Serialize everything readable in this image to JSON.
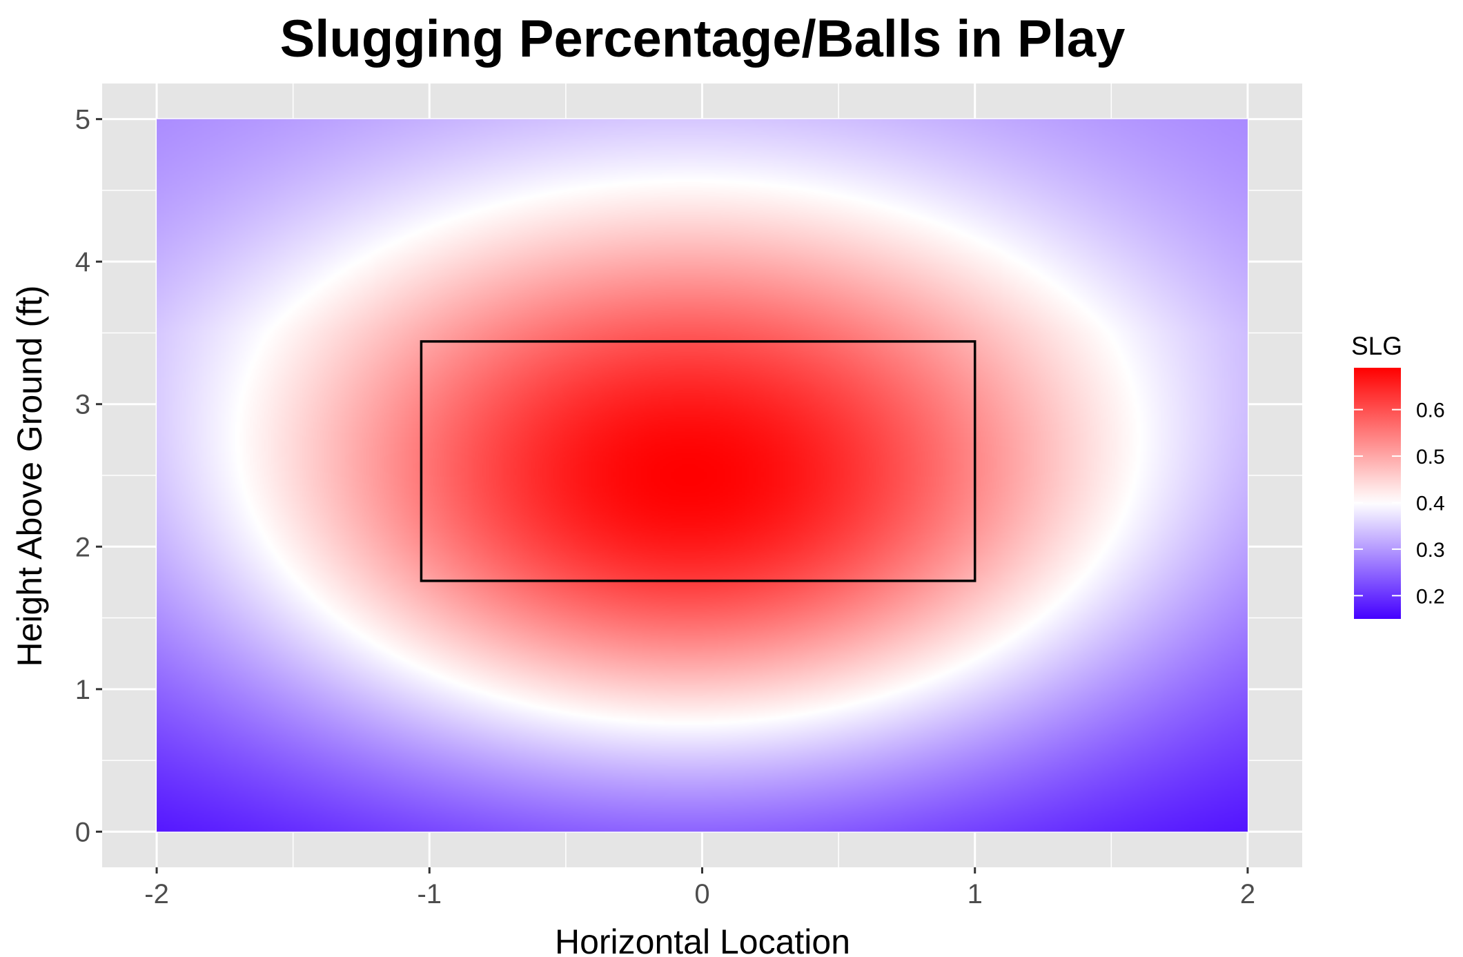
{
  "chart_data": {
    "type": "heatmap",
    "title": "Slugging Percentage/Balls in Play",
    "xlabel": "Horizontal Location",
    "ylabel": "Height Above Ground (ft)",
    "xlim": [
      -2.2,
      2.2
    ],
    "ylim": [
      -0.25,
      5.25
    ],
    "x_ticks": [
      -2,
      -1,
      0,
      1,
      2
    ],
    "x_tick_labels": [
      "-2",
      "-1",
      "0",
      "1",
      "2"
    ],
    "y_ticks": [
      0,
      1,
      2,
      3,
      4,
      5
    ],
    "y_tick_labels": [
      "0",
      "1",
      "2",
      "3",
      "4",
      "5"
    ],
    "grid": true,
    "data_extent": {
      "x": [
        -2,
        2
      ],
      "y": [
        0,
        5
      ]
    },
    "surface": {
      "peak_x": -0.05,
      "peak_y": 2.5,
      "peak_value": 0.69,
      "edge_value_top_corners": 0.27,
      "edge_value_bottom_corners": 0.15
    },
    "strike_zone": {
      "x": [
        -1.03,
        1.0
      ],
      "y": [
        1.76,
        3.44
      ]
    },
    "legend": {
      "title": "SLG",
      "position": "right",
      "range": [
        0.15,
        0.69
      ],
      "ticks": [
        0.2,
        0.3,
        0.4,
        0.5,
        0.6
      ],
      "tick_labels": [
        "0.2",
        "0.3",
        "0.4",
        "0.5",
        "0.6"
      ],
      "color_low": "#4400ff",
      "color_mid": "#ffffff",
      "color_high": "#ff0000",
      "midpoint": 0.4
    },
    "panel_background": "#e5e5e5",
    "grid_color": "#ffffff"
  }
}
